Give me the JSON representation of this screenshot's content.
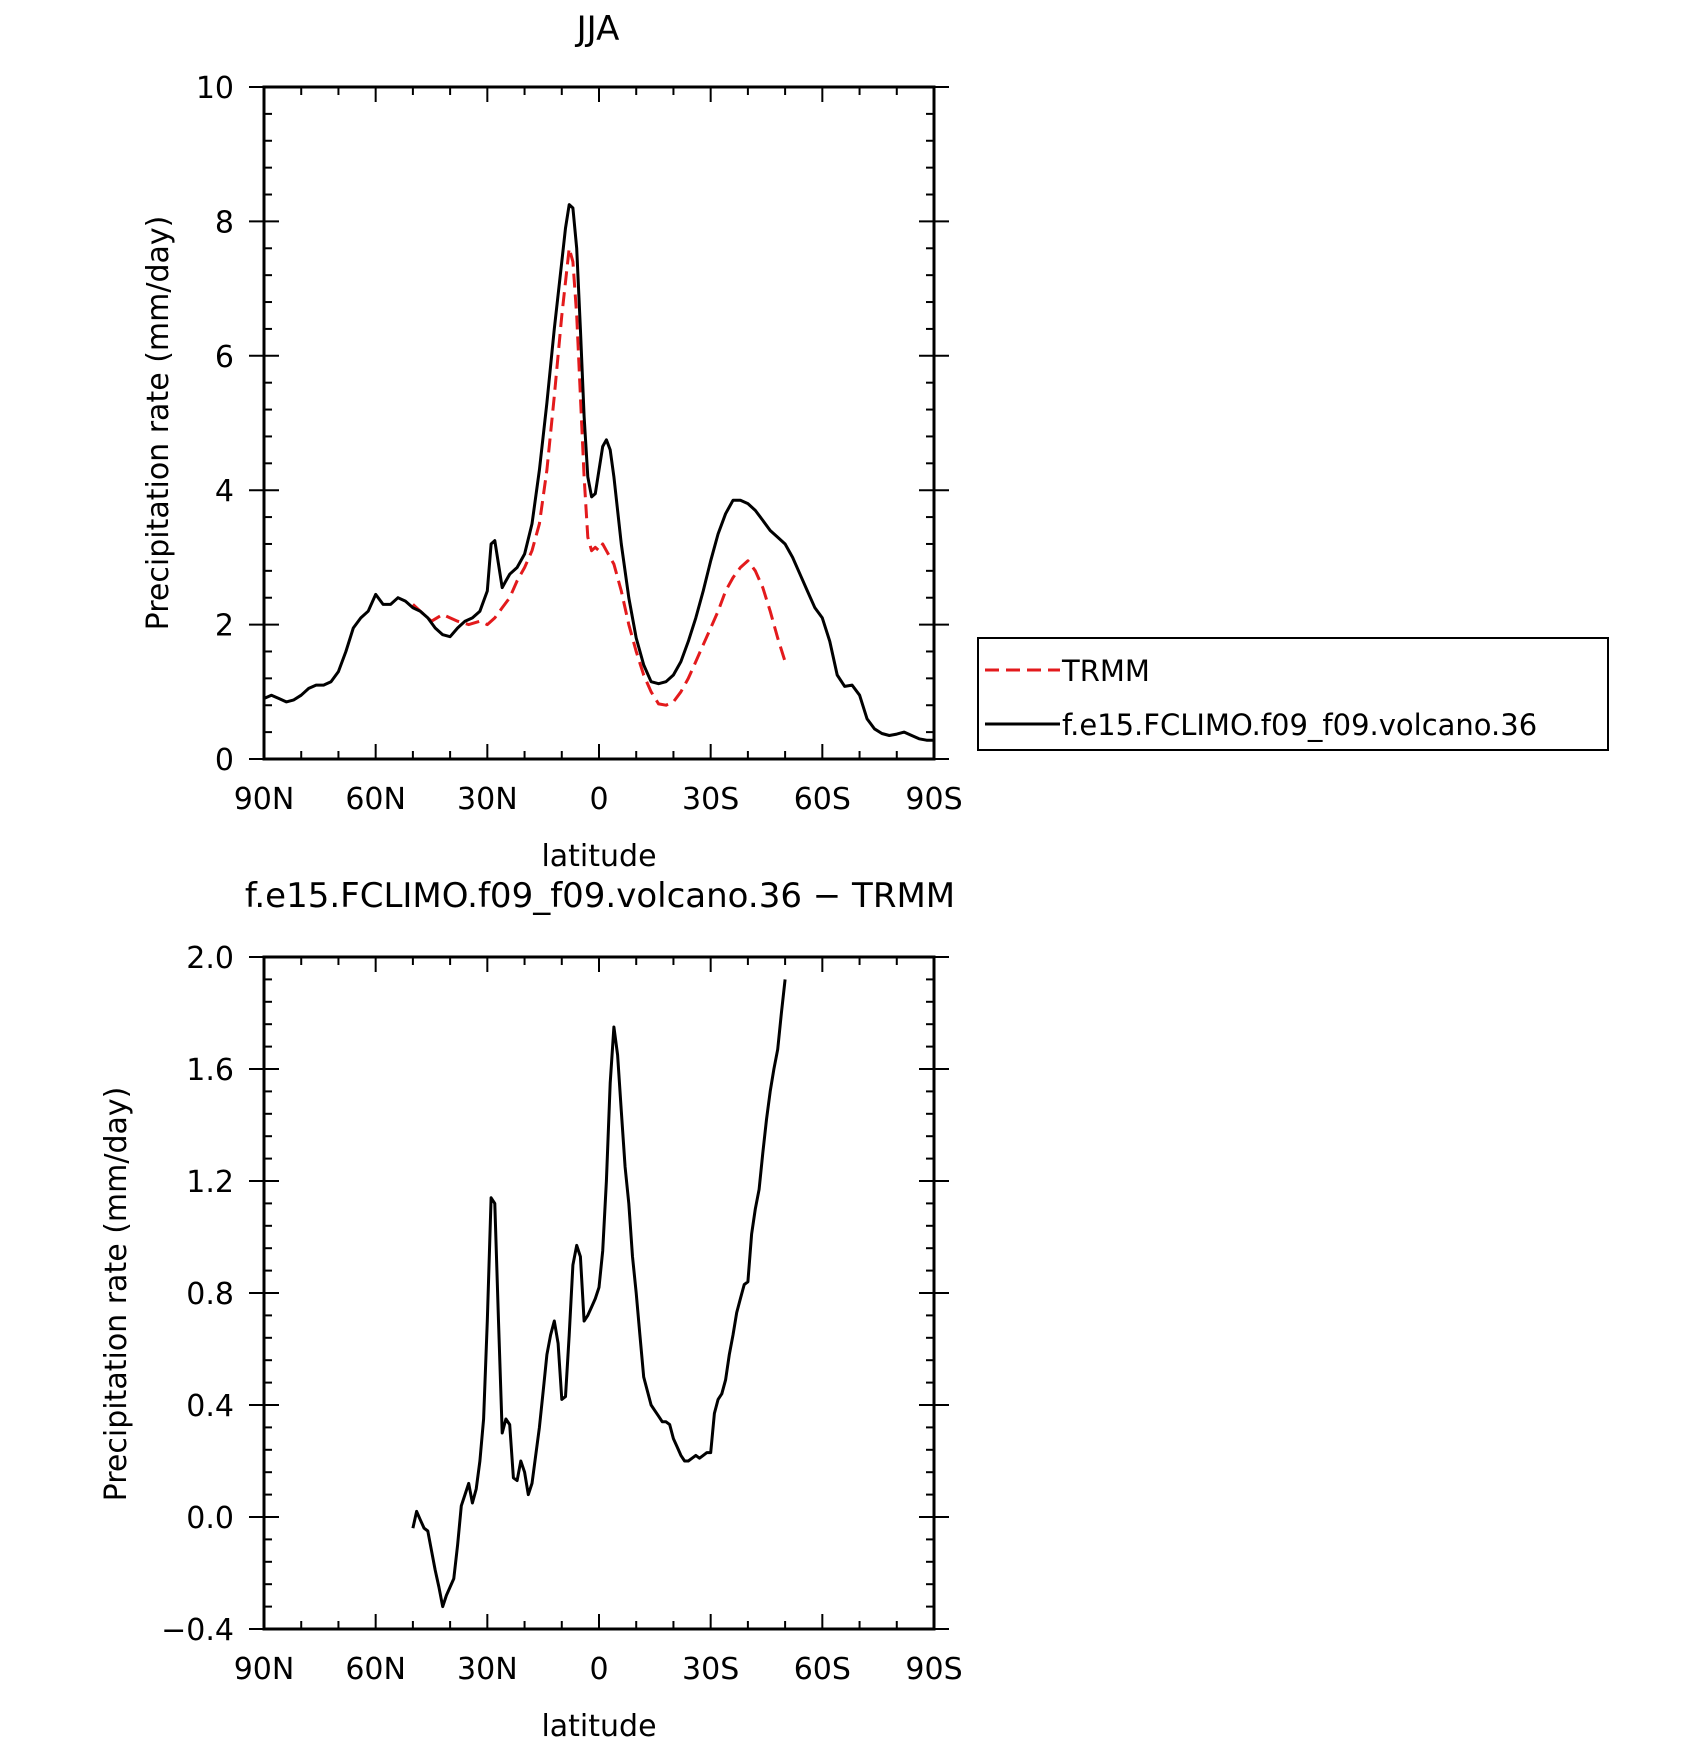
{
  "chart_data": [
    {
      "type": "line",
      "title": "JJA",
      "xlabel": "latitude",
      "ylabel": "Precipitation rate (mm/day)",
      "xlim": [
        90,
        -90
      ],
      "ylim": [
        0,
        10
      ],
      "x_ticks": [
        {
          "value": 90,
          "label": "90N"
        },
        {
          "value": 60,
          "label": "60N"
        },
        {
          "value": 30,
          "label": "30N"
        },
        {
          "value": 0,
          "label": "0"
        },
        {
          "value": -30,
          "label": "30S"
        },
        {
          "value": -60,
          "label": "60S"
        },
        {
          "value": -90,
          "label": "90S"
        }
      ],
      "y_ticks": [
        {
          "value": 0,
          "label": "0"
        },
        {
          "value": 2,
          "label": "2"
        },
        {
          "value": 4,
          "label": "4"
        },
        {
          "value": 6,
          "label": "6"
        },
        {
          "value": 8,
          "label": "8"
        },
        {
          "value": 10,
          "label": "10"
        }
      ],
      "legend_position": "right",
      "series": [
        {
          "name": "TRMM",
          "color": "#e31a1c",
          "dash": "dashed",
          "x": [
            50,
            48,
            45,
            42,
            40,
            38,
            35,
            32,
            30,
            28,
            26,
            24,
            22,
            20,
            18,
            16,
            14,
            12,
            10,
            9,
            8,
            7,
            6,
            5,
            4,
            3,
            2,
            1,
            0,
            -1,
            -2,
            -4,
            -6,
            -8,
            -10,
            -12,
            -14,
            -16,
            -18,
            -20,
            -22,
            -24,
            -26,
            -28,
            -30,
            -32,
            -34,
            -36,
            -38,
            -40,
            -42,
            -44,
            -46,
            -48,
            -50
          ],
          "y": [
            2.3,
            2.2,
            2.05,
            2.15,
            2.1,
            2.05,
            2.0,
            2.05,
            2.0,
            2.1,
            2.25,
            2.4,
            2.65,
            2.85,
            3.1,
            3.5,
            4.3,
            5.4,
            6.6,
            7.1,
            7.6,
            7.4,
            6.6,
            5.4,
            4.2,
            3.3,
            3.1,
            3.15,
            3.1,
            3.2,
            3.1,
            2.9,
            2.5,
            2.0,
            1.6,
            1.25,
            1.0,
            0.82,
            0.8,
            0.85,
            1.0,
            1.2,
            1.45,
            1.7,
            1.95,
            2.2,
            2.5,
            2.7,
            2.85,
            2.95,
            2.8,
            2.55,
            2.2,
            1.8,
            1.45
          ]
        },
        {
          "name": "f.e15.FCLIMO.f09_f09.volcano.36",
          "color": "#000000",
          "dash": "solid",
          "x": [
            90,
            88,
            86,
            84,
            82,
            80,
            78,
            76,
            74,
            72,
            70,
            68,
            66,
            64,
            62,
            60,
            58,
            56,
            54,
            52,
            50,
            48,
            46,
            44,
            42,
            40,
            38,
            36,
            34,
            32,
            30,
            29,
            28,
            27,
            26,
            25,
            24,
            22,
            20,
            18,
            16,
            14,
            12,
            10,
            9,
            8,
            7,
            6,
            5,
            4,
            3,
            2,
            1,
            0,
            -1,
            -2,
            -3,
            -4,
            -5,
            -6,
            -8,
            -10,
            -12,
            -14,
            -16,
            -18,
            -20,
            -22,
            -24,
            -26,
            -28,
            -30,
            -32,
            -34,
            -36,
            -38,
            -40,
            -42,
            -44,
            -46,
            -48,
            -50,
            -52,
            -54,
            -56,
            -58,
            -60,
            -62,
            -64,
            -66,
            -68,
            -70,
            -72,
            -74,
            -76,
            -78,
            -80,
            -82,
            -84,
            -86,
            -88,
            -90
          ],
          "y": [
            0.9,
            0.95,
            0.9,
            0.85,
            0.88,
            0.95,
            1.05,
            1.1,
            1.1,
            1.15,
            1.3,
            1.6,
            1.95,
            2.1,
            2.2,
            2.45,
            2.3,
            2.3,
            2.4,
            2.35,
            2.25,
            2.2,
            2.1,
            1.95,
            1.85,
            1.82,
            1.95,
            2.05,
            2.1,
            2.2,
            2.5,
            3.2,
            3.25,
            2.9,
            2.55,
            2.65,
            2.75,
            2.85,
            3.05,
            3.5,
            4.3,
            5.3,
            6.4,
            7.4,
            7.9,
            8.25,
            8.2,
            7.6,
            6.4,
            5.1,
            4.2,
            3.9,
            3.95,
            4.3,
            4.65,
            4.75,
            4.6,
            4.2,
            3.7,
            3.2,
            2.4,
            1.8,
            1.4,
            1.15,
            1.12,
            1.15,
            1.25,
            1.45,
            1.75,
            2.1,
            2.5,
            2.95,
            3.35,
            3.65,
            3.85,
            3.85,
            3.8,
            3.7,
            3.55,
            3.4,
            3.3,
            3.2,
            3.0,
            2.75,
            2.5,
            2.25,
            2.1,
            1.75,
            1.25,
            1.08,
            1.1,
            0.95,
            0.6,
            0.45,
            0.38,
            0.35,
            0.37,
            0.4,
            0.35,
            0.3,
            0.28,
            0.28
          ]
        }
      ]
    },
    {
      "type": "line",
      "title": "f.e15.FCLIMO.f09_f09.volcano.36 − TRMM",
      "xlabel": "latitude",
      "ylabel": "Precipitation rate (mm/day)",
      "xlim": [
        90,
        -90
      ],
      "ylim": [
        -0.4,
        2.0
      ],
      "x_ticks": [
        {
          "value": 90,
          "label": "90N"
        },
        {
          "value": 60,
          "label": "60N"
        },
        {
          "value": 30,
          "label": "30N"
        },
        {
          "value": 0,
          "label": "0"
        },
        {
          "value": -30,
          "label": "30S"
        },
        {
          "value": -60,
          "label": "60S"
        },
        {
          "value": -90,
          "label": "90S"
        }
      ],
      "y_ticks": [
        {
          "value": -0.4,
          "label": "−0.4"
        },
        {
          "value": 0.0,
          "label": "0.0"
        },
        {
          "value": 0.4,
          "label": "0.4"
        },
        {
          "value": 0.8,
          "label": "0.8"
        },
        {
          "value": 1.2,
          "label": "1.2"
        },
        {
          "value": 1.6,
          "label": "1.6"
        },
        {
          "value": 2.0,
          "label": "2.0"
        }
      ],
      "series": [
        {
          "color": "#000000",
          "dash": "solid",
          "x": [
            50,
            49,
            48,
            47,
            46,
            45,
            44,
            43,
            42,
            41,
            40,
            39,
            38,
            37,
            36,
            35,
            34,
            33,
            32,
            31,
            30,
            29,
            28,
            27,
            26,
            25,
            24,
            23,
            22,
            21,
            20,
            19,
            18,
            17,
            16,
            15,
            14,
            13,
            12,
            11,
            10,
            9,
            8,
            7,
            6,
            5,
            4,
            3,
            2,
            1,
            0,
            -1,
            -2,
            -3,
            -4,
            -5,
            -6,
            -7,
            -8,
            -9,
            -10,
            -11,
            -12,
            -13,
            -14,
            -15,
            -16,
            -17,
            -18,
            -19,
            -20,
            -21,
            -22,
            -23,
            -24,
            -25,
            -26,
            -27,
            -28,
            -29,
            -30,
            -31,
            -32,
            -33,
            -34,
            -35,
            -36,
            -37,
            -38,
            -39,
            -40,
            -41,
            -42,
            -43,
            -44,
            -45,
            -46,
            -47,
            -48,
            -49,
            -50
          ],
          "y": [
            -0.04,
            0.02,
            -0.01,
            -0.04,
            -0.05,
            -0.12,
            -0.19,
            -0.25,
            -0.32,
            -0.28,
            -0.25,
            -0.22,
            -0.1,
            0.04,
            0.08,
            0.12,
            0.05,
            0.1,
            0.2,
            0.35,
            0.7,
            1.14,
            1.12,
            0.7,
            0.3,
            0.35,
            0.33,
            0.14,
            0.13,
            0.2,
            0.16,
            0.08,
            0.12,
            0.22,
            0.32,
            0.45,
            0.58,
            0.65,
            0.7,
            0.62,
            0.42,
            0.43,
            0.65,
            0.9,
            0.97,
            0.93,
            0.7,
            0.72,
            0.75,
            0.78,
            0.82,
            0.95,
            1.2,
            1.55,
            1.75,
            1.65,
            1.45,
            1.25,
            1.12,
            0.93,
            0.8,
            0.65,
            0.5,
            0.45,
            0.4,
            0.38,
            0.36,
            0.34,
            0.34,
            0.33,
            0.28,
            0.25,
            0.22,
            0.2,
            0.2,
            0.21,
            0.22,
            0.21,
            0.22,
            0.23,
            0.23,
            0.37,
            0.42,
            0.44,
            0.49,
            0.58,
            0.65,
            0.73,
            0.78,
            0.83,
            0.84,
            1.01,
            1.1,
            1.17,
            1.3,
            1.42,
            1.52,
            1.6,
            1.67,
            1.8,
            1.92
          ]
        }
      ]
    }
  ]
}
